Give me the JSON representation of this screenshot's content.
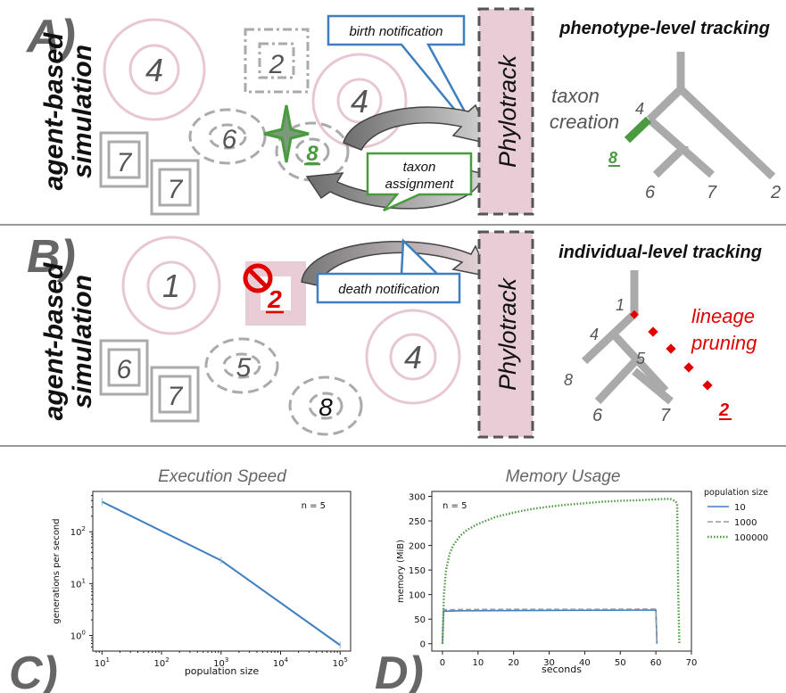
{
  "panelA": {
    "letter": "A)",
    "side_label": "agent-based simulation",
    "side_line1": "agent-based",
    "side_line2": "simulation",
    "agents": [
      "4",
      "2",
      "4",
      "6",
      "8",
      "7",
      "7"
    ],
    "birth_notification": "birth notification",
    "taxon_assignment_line1": "taxon",
    "taxon_assignment_line2": "assignment",
    "phylotrack": "Phylotrack",
    "tracking_title": "phenotype-level tracking",
    "taxon_creation_line1": "taxon",
    "taxon_creation_line2": "creation",
    "tree_labels": {
      "n4": "4",
      "n8": "8",
      "n6": "6",
      "n7": "7",
      "n2": "2"
    }
  },
  "panelB": {
    "letter": "B)",
    "side_line1": "agent-based",
    "side_line2": "simulation",
    "agents": [
      "1",
      "2",
      "4",
      "6",
      "5",
      "7",
      "8"
    ],
    "death_notification": "death notification",
    "phylotrack": "Phylotrack",
    "tracking_title": "individual-level tracking",
    "lineage_pruning_line1": "lineage",
    "lineage_pruning_line2": "pruning",
    "tree_labels": {
      "n1": "1",
      "n4": "4",
      "n5": "5",
      "n8": "8",
      "n6": "6",
      "n7": "7",
      "n2": "2"
    }
  },
  "panelC": {
    "letter": "C)",
    "chart_data": {
      "type": "line",
      "title": "Execution Speed",
      "xlabel": "population size",
      "ylabel": "generations per second",
      "annotation": "n = 5",
      "x_scale": "log",
      "y_scale": "log",
      "xlim": [
        7,
        150000
      ],
      "ylim": [
        0.5,
        600
      ],
      "x_ticks": [
        {
          "v": 10,
          "base": "10",
          "exp": "1"
        },
        {
          "v": 100,
          "base": "10",
          "exp": "2"
        },
        {
          "v": 1000,
          "base": "10",
          "exp": "3"
        },
        {
          "v": 10000,
          "base": "10",
          "exp": "4"
        },
        {
          "v": 100000,
          "base": "10",
          "exp": "5"
        }
      ],
      "y_ticks": [
        {
          "v": 1,
          "base": "10",
          "exp": "0"
        },
        {
          "v": 10,
          "base": "10",
          "exp": "1"
        },
        {
          "v": 100,
          "base": "10",
          "exp": "2"
        }
      ],
      "series": [
        {
          "color": "#3f7fbf",
          "x": [
            10,
            1000,
            100000
          ],
          "y": [
            380,
            28,
            0.65
          ]
        }
      ]
    }
  },
  "panelD": {
    "letter": "D)",
    "chart_data": {
      "type": "line",
      "title": "Memory Usage",
      "xlabel": "seconds",
      "ylabel": "memory (MiB)",
      "annotation": "n = 5",
      "xlim": [
        -3,
        70
      ],
      "ylim": [
        -15,
        310
      ],
      "x_ticks": [
        0,
        10,
        20,
        30,
        40,
        50,
        60,
        70
      ],
      "y_ticks": [
        0,
        50,
        100,
        150,
        200,
        250,
        300
      ],
      "legend": {
        "title": "population size",
        "placement": "outside-top-right"
      },
      "series": [
        {
          "name": "10",
          "color": "#3f7fbf",
          "style": "solid",
          "x": [
            0,
            0.3,
            5,
            20,
            40,
            60,
            60.3
          ],
          "y": [
            0,
            66,
            67,
            67.5,
            68,
            68.5,
            0
          ]
        },
        {
          "name": "1000",
          "color": "#999999",
          "style": "dashed",
          "x": [
            0,
            0.3,
            5,
            20,
            40,
            60,
            60.3
          ],
          "y": [
            0,
            69,
            69.5,
            70,
            70,
            70.5,
            0
          ]
        },
        {
          "name": "100000",
          "color": "#4a9a3f",
          "style": "dotted",
          "x": [
            0,
            0.4,
            1,
            2,
            3,
            5,
            7,
            10,
            15,
            20,
            25,
            30,
            35,
            40,
            45,
            50,
            55,
            60,
            64,
            65.5,
            66,
            66.3,
            66.6
          ],
          "y": [
            0,
            100,
            150,
            183,
            200,
            220,
            232,
            244,
            258,
            267,
            274,
            279,
            283,
            286,
            289,
            291,
            292,
            294,
            295,
            290,
            285,
            100,
            0
          ]
        }
      ]
    }
  }
}
